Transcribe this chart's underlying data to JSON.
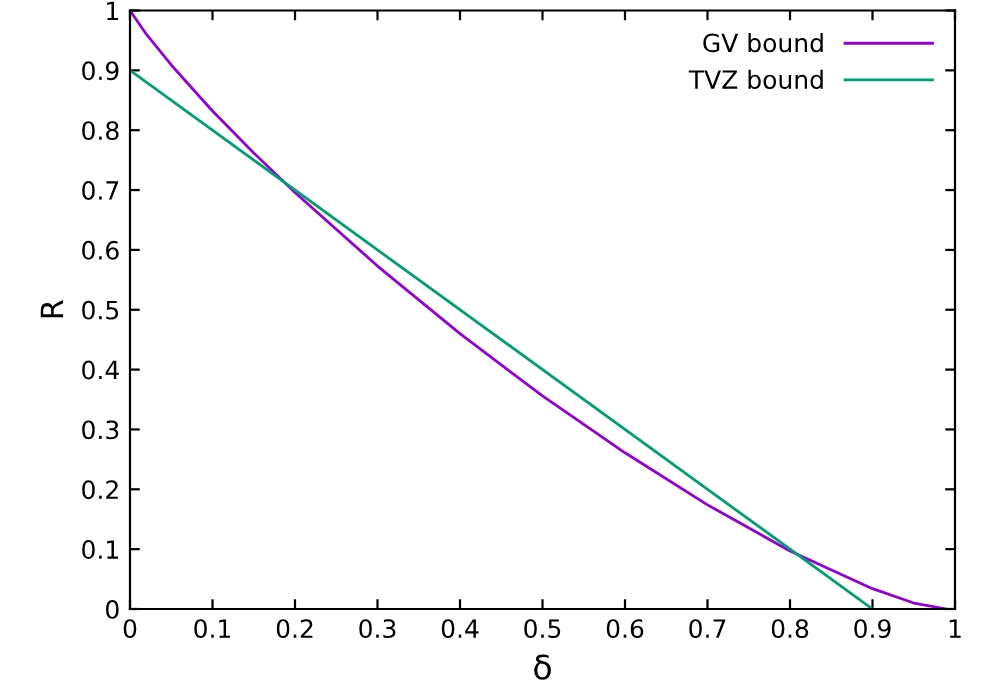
{
  "chart_data": {
    "type": "line",
    "xlabel": "δ",
    "ylabel": "R",
    "xlim": [
      0,
      1
    ],
    "ylim": [
      0,
      1
    ],
    "xticks": [
      0,
      0.1,
      0.2,
      0.3,
      0.4,
      0.5,
      0.6,
      0.7,
      0.8,
      0.9,
      1
    ],
    "yticks": [
      0,
      0.1,
      0.2,
      0.3,
      0.4,
      0.5,
      0.6,
      0.7,
      0.8,
      0.9,
      1
    ],
    "grid": false,
    "legend": "top right",
    "marker": "none",
    "line_style": "solid",
    "series": [
      {
        "name": "GV bound",
        "color": "#9400d3",
        "x": [
          0,
          0.02,
          0.05,
          0.1,
          0.15,
          0.2,
          0.3,
          0.4,
          0.5,
          0.6,
          0.7,
          0.8,
          0.9,
          0.95,
          0.99
        ],
        "values": [
          1,
          0.96,
          0.909,
          0.832,
          0.762,
          0.696,
          0.573,
          0.46,
          0.356,
          0.261,
          0.174,
          0.097,
          0.034,
          0.01,
          0
        ]
      },
      {
        "name": "TVZ bound",
        "color": "#009e73",
        "x": [
          0,
          0.9
        ],
        "values": [
          0.9,
          0
        ]
      }
    ]
  }
}
